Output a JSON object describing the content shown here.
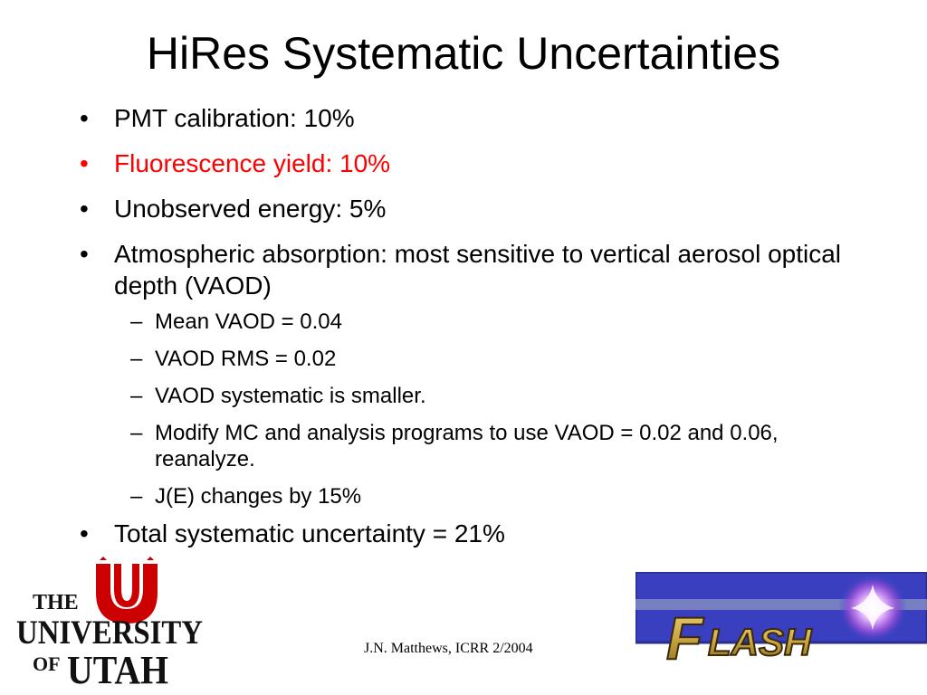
{
  "slide": {
    "title": "HiRes Systematic Uncertainties",
    "bullets": [
      {
        "marker": "•",
        "text": "PMT calibration:  10%"
      },
      {
        "marker": "•",
        "text": "Fluorescence yield:  10%"
      },
      {
        "marker": "•",
        "text": "Unobserved energy:  5%"
      },
      {
        "marker": "•",
        "text": "Atmospheric absorption: most sensitive to vertical aerosol optical depth (VAOD)"
      },
      {
        "marker": "•",
        "text": "Total systematic uncertainty = 21%"
      }
    ],
    "sub_bullets": [
      {
        "marker": "–",
        "text": "Mean VAOD = 0.04"
      },
      {
        "marker": "–",
        "text": "VAOD RMS = 0.02"
      },
      {
        "marker": "–",
        "text": "VAOD systematic is smaller."
      },
      {
        "marker": "–",
        "text": "Modify MC and analysis programs to use VAOD = 0.02 and 0.06, reanalyze."
      },
      {
        "marker": "–",
        "text": "J(E) changes by 15%"
      }
    ],
    "footer": "J.N. Matthews, ICRR 2/2004"
  },
  "logos": {
    "utah": {
      "line1": "THE",
      "line2": "UNIVERSITY",
      "line3a": "OF",
      "line3b": "UTAH",
      "color": "#cc0000"
    },
    "flash": {
      "text_big": "F",
      "text_rest": "LASH",
      "bg_color": "#3a3fc0",
      "text_color": "#c9a642"
    }
  },
  "colors": {
    "highlight": "#ff0000",
    "text": "#000000"
  }
}
